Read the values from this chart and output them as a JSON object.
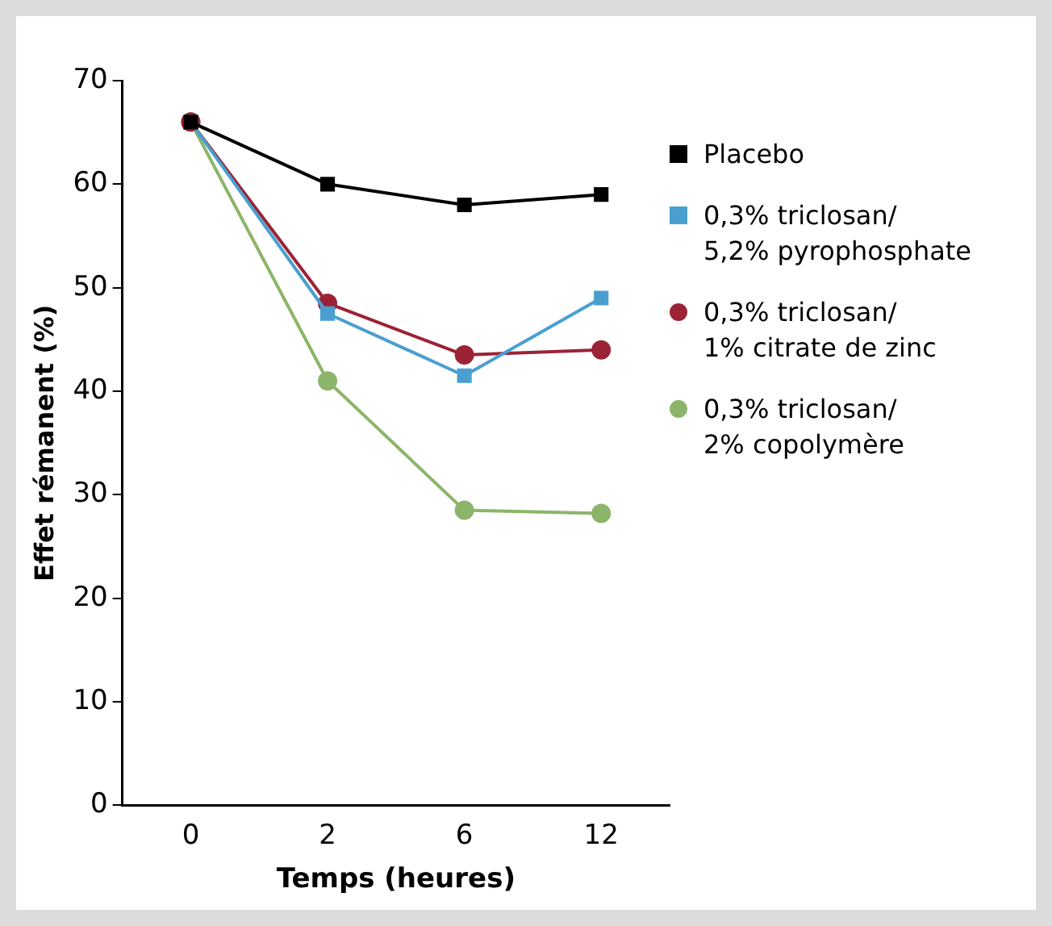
{
  "chart_data": {
    "type": "line",
    "xlabel": "Temps (heures)",
    "ylabel": "Effet rémanent (%)",
    "categories": [
      "0",
      "2",
      "6",
      "12"
    ],
    "ylim": [
      0,
      70
    ],
    "yticks": [
      0,
      10,
      20,
      30,
      40,
      50,
      60,
      70
    ],
    "grid": false,
    "legend": "right",
    "series": [
      {
        "name": "Placebo",
        "color": "#000000",
        "marker": "square",
        "values": [
          66,
          60,
          58,
          59
        ]
      },
      {
        "name": "0,3% triclosan/\n5,2% pyrophosphate",
        "color": "#4a9fd0",
        "marker": "square",
        "values": [
          66,
          47.5,
          41.5,
          49
        ]
      },
      {
        "name": "0,3% triclosan/\n1% citrate de zinc",
        "color": "#9b2335",
        "marker": "circle",
        "values": [
          66,
          48.5,
          43.5,
          44
        ]
      },
      {
        "name": "0,3% triclosan/\n2% copolymère",
        "color": "#8cb56a",
        "marker": "circle",
        "values": [
          66,
          41,
          28.5,
          28.2
        ]
      }
    ]
  }
}
